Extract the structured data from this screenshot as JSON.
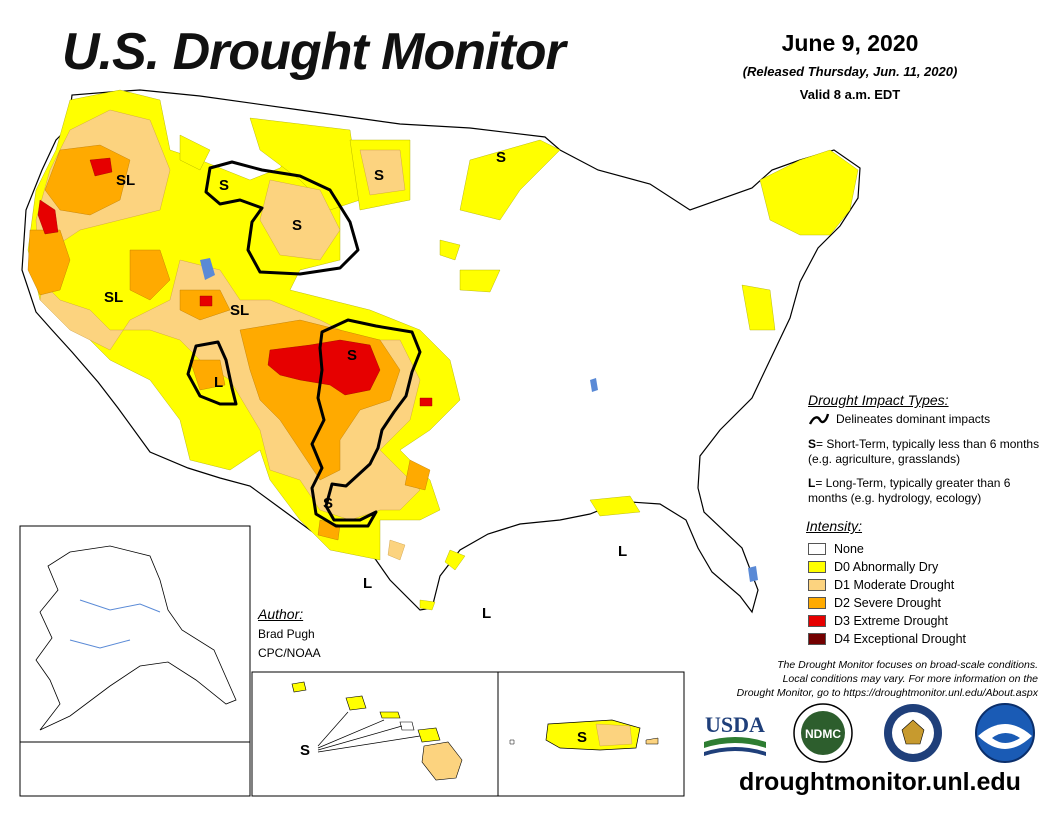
{
  "header": {
    "title": "U.S. Drought Monitor",
    "date": "June 9, 2020",
    "released": "(Released Thursday, Jun. 11, 2020)",
    "valid": "Valid 8 a.m. EDT"
  },
  "impact_legend": {
    "heading": "Drought Impact Types:",
    "line_label": "Delineates dominant impacts",
    "short_key": "S",
    "short_text": "= Short-Term, typically less than 6 months (e.g. agriculture, grasslands)",
    "long_key": "L",
    "long_text": "= Long-Term, typically greater than 6 months (e.g. hydrology, ecology)"
  },
  "intensity_legend": {
    "heading": "Intensity:",
    "items": [
      {
        "label": "None",
        "color": "#ffffff"
      },
      {
        "label": "D0 Abnormally Dry",
        "color": "#ffff00"
      },
      {
        "label": "D1 Moderate Drought",
        "color": "#fcd37f"
      },
      {
        "label": "D2 Severe Drought",
        "color": "#ffaa00"
      },
      {
        "label": "D3 Extreme Drought",
        "color": "#e60000"
      },
      {
        "label": "D4 Exceptional Drought",
        "color": "#730000"
      }
    ]
  },
  "author": {
    "heading": "Author:",
    "name": "Brad Pugh",
    "org": "CPC/NOAA"
  },
  "disclaimer": [
    "The Drought Monitor focuses on broad-scale conditions.",
    "Local conditions may vary. For more information on the",
    "Drought Monitor, go to https://droughtmonitor.unl.edu/About.aspx"
  ],
  "map_labels": {
    "sl": "SL",
    "s": "S",
    "l": "L"
  },
  "logos": {
    "usda": "USDA",
    "ndmc": "NDMC"
  },
  "website": "droughtmonitor.unl.edu",
  "colors": {
    "d0": "#ffff00",
    "d1": "#fcd37f",
    "d2": "#ffaa00",
    "d3": "#e60000",
    "d4": "#730000",
    "water": "#5a8ad6"
  }
}
